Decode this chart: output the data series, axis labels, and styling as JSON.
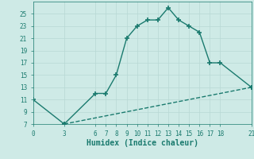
{
  "xlabel": "Humidex (Indice chaleur)",
  "ylabel": "",
  "background_color": "#ceeae6",
  "line_color": "#1a7a6e",
  "grid_color": "#b8d8d4",
  "line1_x": [
    0,
    3,
    6,
    7,
    8,
    9,
    10,
    11,
    12,
    13,
    14,
    15,
    16,
    17,
    18,
    21
  ],
  "line1_y": [
    11,
    7,
    12,
    12,
    15,
    21,
    23,
    24,
    24,
    26,
    24,
    23,
    22,
    17,
    17,
    13
  ],
  "line2_x": [
    3,
    21
  ],
  "line2_y": [
    7,
    13
  ],
  "xlim": [
    0,
    21
  ],
  "ylim": [
    7,
    27
  ],
  "xticks": [
    0,
    3,
    6,
    7,
    8,
    9,
    10,
    11,
    12,
    13,
    14,
    15,
    16,
    17,
    18,
    21
  ],
  "yticks": [
    7,
    9,
    11,
    13,
    15,
    17,
    19,
    21,
    23,
    25
  ],
  "marker": "+",
  "marker_size": 5,
  "linewidth": 1.0
}
